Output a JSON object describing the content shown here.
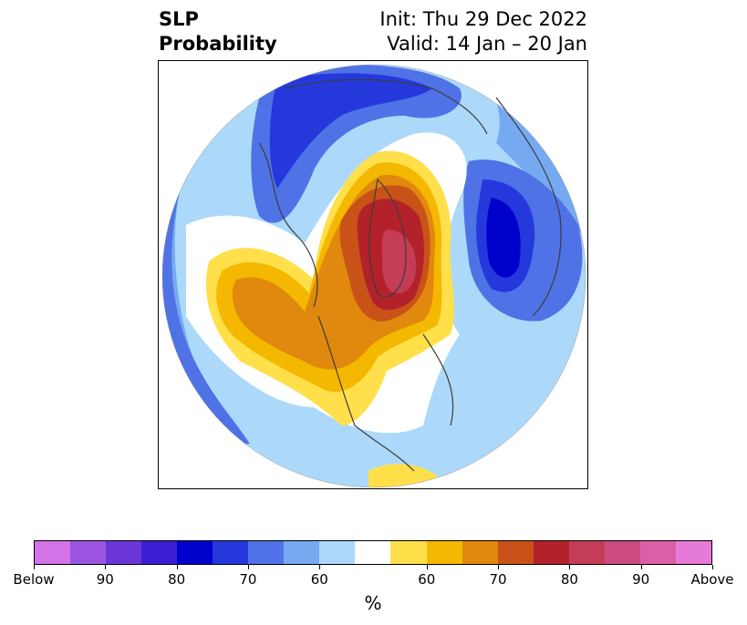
{
  "title": {
    "left_line1": "SLP",
    "left_line2": "Probability",
    "right_line1": "Init: Thu 29 Dec 2022",
    "right_line2": "Valid: 14 Jan – 20 Jan"
  },
  "map": {
    "projection": "north polar stereographic",
    "regions": [
      "Northern Hemisphere"
    ]
  },
  "legend": {
    "unit": "%",
    "colors": [
      "#d473e8",
      "#9b55e0",
      "#6a36d8",
      "#3a1fd4",
      "#0000cc",
      "#2438dc",
      "#4f73e6",
      "#76aaf0",
      "#acd9fa",
      "#ffffff",
      "#ffe04b",
      "#f5b800",
      "#e0890e",
      "#c85218",
      "#b3222a",
      "#c43c55",
      "#cc4b7e",
      "#da5fa8",
      "#e67ad8"
    ],
    "tick_labels": [
      "Below",
      "90",
      "80",
      "70",
      "60",
      "60",
      "70",
      "80",
      "90",
      "Above"
    ]
  }
}
